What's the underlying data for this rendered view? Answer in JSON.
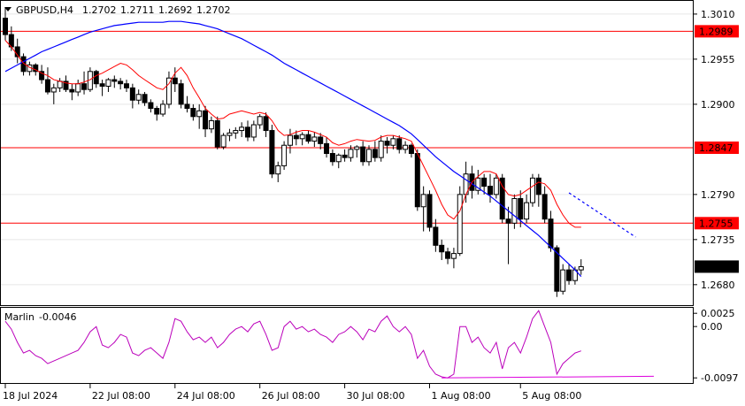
{
  "header": {
    "symbol": "GBPUSD,H4",
    "open": "1.2702",
    "high": "1.2711",
    "low": "1.2692",
    "close": "1.2702"
  },
  "indicator": {
    "name": "Marlin",
    "value": "-0.0046",
    "levels": [
      "0.0025",
      "0.00",
      "-0.0097"
    ]
  },
  "price_axis": {
    "ticks": [
      "1.3010",
      "1.2955",
      "1.2900",
      "1.2790",
      "1.2735",
      "1.2680"
    ],
    "current_price": "1.2702"
  },
  "hlines": [
    {
      "price": 1.2989,
      "label": "1.2989",
      "color": "#ff0000"
    },
    {
      "price": 1.2847,
      "label": "1.2847",
      "color": "#ff0000"
    },
    {
      "price": 1.2755,
      "label": "1.2755",
      "color": "#ff0000"
    }
  ],
  "time_axis": [
    "18 Jul 2024",
    "22 Jul 08:00",
    "24 Jul 08:00",
    "26 Jul 08:00",
    "30 Jul 08:00",
    "1 Aug 08:00",
    "5 Aug 08:00"
  ],
  "colors": {
    "ma_fast": "#ff0000",
    "ma_slow": "#0000ff",
    "marlin": "#bb00bb",
    "divergence": "#dd00dd",
    "bull_body": "#ffffff",
    "bear_body": "#000000"
  },
  "chart_data": {
    "type": "candlestick",
    "ylim": [
      1.2655,
      1.3025
    ],
    "candles": [
      [
        1.3005,
        1.3018,
        1.2978,
        1.2985
      ],
      [
        1.2985,
        1.2995,
        1.2965,
        1.297
      ],
      [
        1.297,
        1.298,
        1.295,
        1.2958
      ],
      [
        1.2958,
        1.2962,
        1.2935,
        1.294
      ],
      [
        1.294,
        1.2952,
        1.2935,
        1.2948
      ],
      [
        1.2948,
        1.295,
        1.2935,
        1.294
      ],
      [
        1.294,
        1.2948,
        1.2925,
        1.293
      ],
      [
        1.293,
        1.2945,
        1.2912,
        1.2915
      ],
      [
        1.2915,
        1.2925,
        1.29,
        1.292
      ],
      [
        1.292,
        1.2932,
        1.2915,
        1.2928
      ],
      [
        1.2928,
        1.2935,
        1.2915,
        1.2918
      ],
      [
        1.2918,
        1.2925,
        1.2905,
        1.2915
      ],
      [
        1.2915,
        1.293,
        1.291,
        1.2925
      ],
      [
        1.2925,
        1.294,
        1.2912,
        1.2918
      ],
      [
        1.2918,
        1.2945,
        1.2915,
        1.294
      ],
      [
        1.294,
        1.2942,
        1.292,
        1.2925
      ],
      [
        1.2925,
        1.293,
        1.291,
        1.2922
      ],
      [
        1.2922,
        1.2932,
        1.2915,
        1.293
      ],
      [
        1.293,
        1.2935,
        1.292,
        1.2928
      ],
      [
        1.2928,
        1.2932,
        1.2918,
        1.2925
      ],
      [
        1.2925,
        1.293,
        1.2915,
        1.292
      ],
      [
        1.292,
        1.2925,
        1.2895,
        1.2905
      ],
      [
        1.2905,
        1.2918,
        1.29,
        1.2912
      ],
      [
        1.2912,
        1.2915,
        1.2898,
        1.2902
      ],
      [
        1.2902,
        1.2906,
        1.289,
        1.2895
      ],
      [
        1.2895,
        1.2898,
        1.288,
        1.2888
      ],
      [
        1.2888,
        1.2905,
        1.2885,
        1.29
      ],
      [
        1.29,
        1.294,
        1.2895,
        1.2932
      ],
      [
        1.2932,
        1.2945,
        1.2915,
        1.2925
      ],
      [
        1.2925,
        1.293,
        1.2895,
        1.29
      ],
      [
        1.29,
        1.291,
        1.289,
        1.2895
      ],
      [
        1.2895,
        1.29,
        1.288,
        1.2885
      ],
      [
        1.2885,
        1.29,
        1.287,
        1.2892
      ],
      [
        1.2892,
        1.2898,
        1.286,
        1.287
      ],
      [
        1.287,
        1.2885,
        1.2865,
        1.288
      ],
      [
        1.288,
        1.2885,
        1.2845,
        1.2848
      ],
      [
        1.2848,
        1.2865,
        1.2845,
        1.2862
      ],
      [
        1.2862,
        1.287,
        1.2855,
        1.2865
      ],
      [
        1.2865,
        1.2872,
        1.2858,
        1.2868
      ],
      [
        1.2868,
        1.2878,
        1.286,
        1.2872
      ],
      [
        1.2872,
        1.288,
        1.2855,
        1.286
      ],
      [
        1.286,
        1.288,
        1.2855,
        1.2875
      ],
      [
        1.2875,
        1.2888,
        1.287,
        1.2885
      ],
      [
        1.2885,
        1.289,
        1.286,
        1.2868
      ],
      [
        1.2868,
        1.2875,
        1.281,
        1.2815
      ],
      [
        1.2815,
        1.283,
        1.2805,
        1.2825
      ],
      [
        1.2825,
        1.2855,
        1.282,
        1.285
      ],
      [
        1.285,
        1.287,
        1.284,
        1.2862
      ],
      [
        1.2862,
        1.2868,
        1.285,
        1.2858
      ],
      [
        1.2858,
        1.2866,
        1.285,
        1.2863
      ],
      [
        1.2863,
        1.2868,
        1.2852,
        1.2855
      ],
      [
        1.2855,
        1.2866,
        1.2848,
        1.286
      ],
      [
        1.286,
        1.2865,
        1.2845,
        1.2852
      ],
      [
        1.2852,
        1.286,
        1.2835,
        1.284
      ],
      [
        1.284,
        1.2845,
        1.2825,
        1.283
      ],
      [
        1.283,
        1.284,
        1.2822,
        1.2838
      ],
      [
        1.2838,
        1.2845,
        1.283,
        1.2835
      ],
      [
        1.2835,
        1.285,
        1.283,
        1.2845
      ],
      [
        1.2845,
        1.285,
        1.2835,
        1.2848
      ],
      [
        1.2848,
        1.2855,
        1.2825,
        1.283
      ],
      [
        1.283,
        1.285,
        1.2825,
        1.2845
      ],
      [
        1.2845,
        1.2855,
        1.283,
        1.2835
      ],
      [
        1.2835,
        1.2862,
        1.283,
        1.2855
      ],
      [
        1.2855,
        1.286,
        1.284,
        1.285
      ],
      [
        1.285,
        1.2862,
        1.2845,
        1.2858
      ],
      [
        1.2858,
        1.2862,
        1.284,
        1.2845
      ],
      [
        1.2845,
        1.2855,
        1.284,
        1.285
      ],
      [
        1.285,
        1.2852,
        1.2835,
        1.284
      ],
      [
        1.284,
        1.2845,
        1.277,
        1.2775
      ],
      [
        1.2775,
        1.28,
        1.2745,
        1.279
      ],
      [
        1.279,
        1.2795,
        1.2745,
        1.275
      ],
      [
        1.275,
        1.276,
        1.272,
        1.2728
      ],
      [
        1.2728,
        1.2735,
        1.271,
        1.272
      ],
      [
        1.272,
        1.2725,
        1.2705,
        1.2712
      ],
      [
        1.2712,
        1.2725,
        1.27,
        1.2718
      ],
      [
        1.2718,
        1.28,
        1.2715,
        1.279
      ],
      [
        1.279,
        1.283,
        1.278,
        1.2815
      ],
      [
        1.2815,
        1.2825,
        1.2785,
        1.2795
      ],
      [
        1.2795,
        1.282,
        1.279,
        1.281
      ],
      [
        1.281,
        1.2815,
        1.279,
        1.28
      ],
      [
        1.28,
        1.2815,
        1.278,
        1.279
      ],
      [
        1.279,
        1.2815,
        1.2785,
        1.281
      ],
      [
        1.281,
        1.2815,
        1.2755,
        1.276
      ],
      [
        1.276,
        1.2775,
        1.2705,
        1.2755
      ],
      [
        1.2755,
        1.279,
        1.2748,
        1.2785
      ],
      [
        1.2785,
        1.2795,
        1.275,
        1.276
      ],
      [
        1.276,
        1.279,
        1.2755,
        1.278
      ],
      [
        1.278,
        1.2815,
        1.2775,
        1.281
      ],
      [
        1.281,
        1.2815,
        1.2775,
        1.279
      ],
      [
        1.279,
        1.28,
        1.2755,
        1.276
      ],
      [
        1.276,
        1.277,
        1.272,
        1.2725
      ],
      [
        1.2725,
        1.2728,
        1.2665,
        1.2672
      ],
      [
        1.2672,
        1.2705,
        1.2668,
        1.2698
      ],
      [
        1.2698,
        1.2705,
        1.268,
        1.2685
      ],
      [
        1.2685,
        1.2702,
        1.268,
        1.2698
      ],
      [
        1.2698,
        1.2711,
        1.2692,
        1.2702
      ]
    ],
    "ma_fast": [
      1.2978,
      1.297,
      1.296,
      1.295,
      1.2945,
      1.2942,
      1.2938,
      1.2935,
      1.293,
      1.2928,
      1.2926,
      1.2925,
      1.2925,
      1.2927,
      1.293,
      1.2935,
      1.2938,
      1.2942,
      1.2946,
      1.295,
      1.2948,
      1.2942,
      1.2935,
      1.293,
      1.2925,
      1.292,
      1.2918,
      1.2925,
      1.2938,
      1.2945,
      1.2935,
      1.292,
      1.2908,
      1.2895,
      1.2888,
      1.2882,
      1.2883,
      1.2888,
      1.289,
      1.2892,
      1.289,
      1.2888,
      1.289,
      1.2888,
      1.288,
      1.2868,
      1.2862,
      1.2863,
      1.2866,
      1.2868,
      1.2868,
      1.2866,
      1.2863,
      1.286,
      1.2853,
      1.285,
      1.2852,
      1.2855,
      1.2857,
      1.2856,
      1.2855,
      1.2856,
      1.286,
      1.2862,
      1.2862,
      1.286,
      1.2858,
      1.2855,
      1.284,
      1.2825,
      1.281,
      1.2795,
      1.2778,
      1.2765,
      1.276,
      1.277,
      1.279,
      1.2805,
      1.2812,
      1.2818,
      1.2818,
      1.2815,
      1.28,
      1.279,
      1.2788,
      1.279,
      1.2795,
      1.28,
      1.2805,
      1.2803,
      1.2795,
      1.2778,
      1.2765,
      1.2755,
      1.275,
      1.275
    ],
    "ma_slow": [
      1.294,
      1.2944,
      1.2948,
      1.2952,
      1.2956,
      1.296,
      1.2964,
      1.2967,
      1.297,
      1.2973,
      1.2976,
      1.2979,
      1.2982,
      1.2985,
      1.2988,
      1.299,
      1.2992,
      1.2994,
      1.2996,
      1.2997,
      1.2998,
      1.2999,
      1.3,
      1.3,
      1.3,
      1.3,
      1.3,
      1.3001,
      1.3001,
      1.3001,
      1.3,
      1.2999,
      1.2998,
      1.2996,
      1.2994,
      1.2992,
      1.2989,
      1.2986,
      1.2983,
      1.298,
      1.2976,
      1.2972,
      1.2968,
      1.2964,
      1.296,
      1.2955,
      1.295,
      1.2946,
      1.2942,
      1.2938,
      1.2934,
      1.293,
      1.2926,
      1.2922,
      1.2918,
      1.2914,
      1.291,
      1.2906,
      1.2902,
      1.2898,
      1.2894,
      1.289,
      1.2886,
      1.2882,
      1.2878,
      1.2874,
      1.2869,
      1.2864,
      1.2857,
      1.285,
      1.2843,
      1.2836,
      1.283,
      1.2824,
      1.2818,
      1.2813,
      1.2808,
      1.2803,
      1.2798,
      1.2793,
      1.2788,
      1.2782,
      1.2776,
      1.277,
      1.2764,
      1.2758,
      1.2752,
      1.2746,
      1.274,
      1.2733,
      1.2726,
      1.2719,
      1.2712,
      1.2705,
      1.2698,
      1.269
    ],
    "ma_slow_projection": [
      [
        93,
        1.2792
      ],
      [
        104,
        1.2738
      ]
    ],
    "marlin": [
      0.001,
      -0.0005,
      -0.003,
      -0.005,
      -0.0045,
      -0.0055,
      -0.006,
      -0.007,
      -0.0065,
      -0.006,
      -0.0055,
      -0.005,
      -0.0045,
      -0.003,
      -0.001,
      0.0,
      -0.0035,
      -0.004,
      -0.003,
      -0.0015,
      -0.002,
      -0.005,
      -0.0055,
      -0.0045,
      -0.004,
      -0.005,
      -0.006,
      -0.003,
      0.0015,
      0.001,
      -0.001,
      -0.0025,
      -0.002,
      -0.003,
      -0.002,
      -0.004,
      -0.003,
      -0.0015,
      -0.0005,
      0.0,
      -0.001,
      0.0005,
      0.001,
      -0.0015,
      -0.0045,
      -0.004,
      0.0,
      0.001,
      -0.0005,
      0.0,
      -0.001,
      -0.0005,
      -0.0015,
      -0.002,
      -0.003,
      -0.0015,
      -0.001,
      0.0,
      -0.001,
      -0.0025,
      -0.0005,
      -0.001,
      0.001,
      0.002,
      0.0,
      -0.001,
      0.0,
      -0.0015,
      -0.006,
      -0.0045,
      -0.0075,
      -0.009,
      -0.0095,
      -0.0097,
      -0.009,
      0.0,
      0.0,
      -0.003,
      -0.002,
      -0.004,
      -0.005,
      -0.003,
      -0.008,
      -0.004,
      -0.003,
      -0.005,
      -0.002,
      0.0015,
      0.003,
      0.0,
      -0.003,
      -0.009,
      -0.007,
      -0.006,
      -0.005,
      -0.0046
    ],
    "divergence": [
      [
        72,
        -0.0097
      ],
      [
        107,
        -0.0094
      ]
    ]
  }
}
